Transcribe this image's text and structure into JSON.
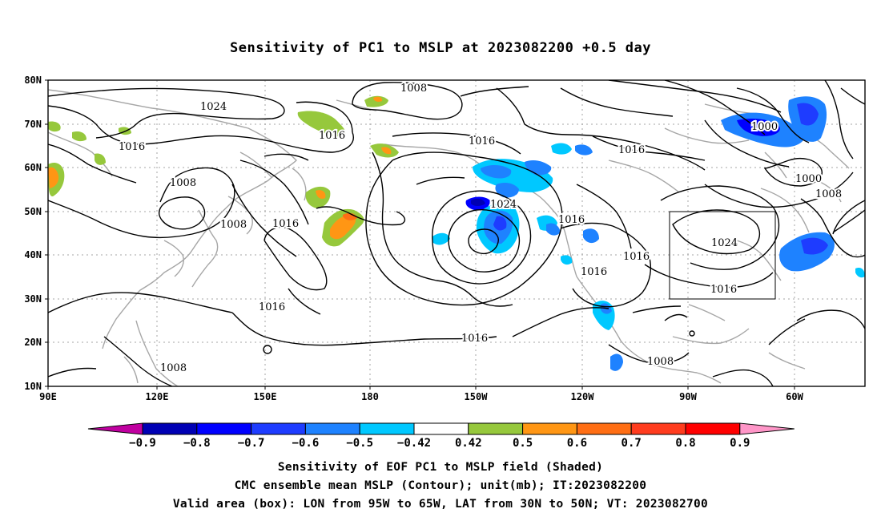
{
  "title": "Sensitivity of PC1 to MSLP at 2023082200 +0.5 day",
  "map": {
    "lat_labels": [
      "80N",
      "70N",
      "60N",
      "50N",
      "40N",
      "30N",
      "20N",
      "10N"
    ],
    "lon_labels": [
      "90E",
      "120E",
      "150E",
      "180",
      "150W",
      "120W",
      "90W",
      "60W"
    ],
    "contour_labels": [
      "1008",
      "1024",
      "1016",
      "1016",
      "1008",
      "1016",
      "1008",
      "1016",
      "1016",
      "1024",
      "1016",
      "1016",
      "1016",
      "1016",
      "1000",
      "1000",
      "1008",
      "1024",
      "1016",
      "1016",
      "1008",
      "1008"
    ],
    "valid_box": {
      "lon_from": "95W",
      "lon_to": "65W",
      "lat_from": "30N",
      "lat_to": "50N"
    },
    "colors": {
      "contour": "#000000",
      "coastline": "#a6a6a6",
      "gridline": "#a6a6a6",
      "negative_strong": "#0000e6",
      "negative_mid": "#1e78ff",
      "negative_weak": "#00c8ff",
      "positive_weak": "#96c83c",
      "positive_mid": "#ff9614",
      "positive_strong": "#ff5a1e"
    }
  },
  "colorbar": {
    "tick_labels": [
      "−0.9",
      "−0.8",
      "−0.7",
      "−0.6",
      "−0.5",
      "−0.42",
      "0.42",
      "0.5",
      "0.6",
      "0.7",
      "0.8",
      "0.9"
    ],
    "colors": [
      "#c000a0",
      "#0000b4",
      "#0000ff",
      "#1e3cff",
      "#1e82ff",
      "#00c8ff",
      "#ffffff",
      "#96c83c",
      "#ff9614",
      "#ff6e14",
      "#ff3c1e",
      "#ff0000",
      "#ff96c8"
    ]
  },
  "captions": {
    "line1": "Sensitivity of EOF PC1 to MSLP field (Shaded)",
    "line2": "CMC ensemble mean MSLP (Contour); unit(mb); IT:2023082200",
    "line3": "Valid area (box): LON from 95W to 65W, LAT from 30N to 50N; VT: 2023082700"
  }
}
